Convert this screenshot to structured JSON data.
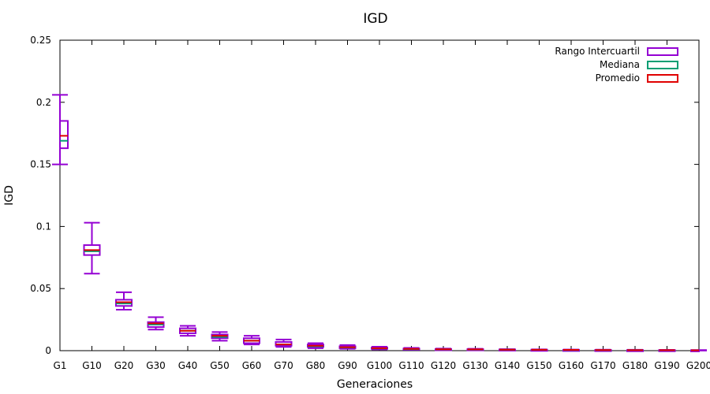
{
  "chart_data": {
    "type": "boxplot",
    "title": "IGD",
    "xlabel": "Generaciones",
    "ylabel": "IGD",
    "ylim": [
      0,
      0.25
    ],
    "yticks": [
      "0",
      "0.05",
      "0.1",
      "0.15",
      "0.2",
      "0.25"
    ],
    "ytick_values": [
      0,
      0.05,
      0.1,
      0.15,
      0.2,
      0.25
    ],
    "categories": [
      "G1",
      "G10",
      "G20",
      "G30",
      "G40",
      "G50",
      "G60",
      "G70",
      "G80",
      "G90",
      "G100",
      "G110",
      "G120",
      "G130",
      "G140",
      "G150",
      "G160",
      "G170",
      "G180",
      "G190",
      "G200"
    ],
    "whisker_low": [
      0.15,
      0.062,
      0.033,
      0.017,
      0.012,
      0.008,
      0.005,
      0.003,
      0.002,
      0.0015,
      0.001,
      0.0008,
      0.0006,
      0.0005,
      0.0004,
      0.0003,
      0.0003,
      0.0002,
      0.0002,
      0.0002,
      0.0001
    ],
    "q1": [
      0.163,
      0.077,
      0.036,
      0.019,
      0.014,
      0.01,
      0.006,
      0.004,
      0.003,
      0.002,
      0.0015,
      0.001,
      0.0008,
      0.0007,
      0.0006,
      0.0005,
      0.0004,
      0.0003,
      0.0003,
      0.0002,
      0.0002
    ],
    "median": [
      0.169,
      0.08,
      0.038,
      0.021,
      0.016,
      0.011,
      0.008,
      0.005,
      0.0035,
      0.0025,
      0.0018,
      0.0012,
      0.001,
      0.0009,
      0.0007,
      0.0006,
      0.0005,
      0.0004,
      0.0004,
      0.0003,
      0.0003
    ],
    "mean": [
      0.173,
      0.081,
      0.039,
      0.022,
      0.016,
      0.012,
      0.008,
      0.005,
      0.004,
      0.0028,
      0.002,
      0.0014,
      0.0011,
      0.001,
      0.0008,
      0.0007,
      0.0006,
      0.0005,
      0.0004,
      0.0004,
      0.0003
    ],
    "q3": [
      0.185,
      0.085,
      0.041,
      0.023,
      0.018,
      0.013,
      0.01,
      0.007,
      0.005,
      0.0035,
      0.0025,
      0.0017,
      0.0013,
      0.0012,
      0.001,
      0.0008,
      0.0007,
      0.0006,
      0.0005,
      0.0005,
      0.0004
    ],
    "whisker_high": [
      0.206,
      0.103,
      0.047,
      0.027,
      0.02,
      0.015,
      0.012,
      0.009,
      0.006,
      0.0045,
      0.0032,
      0.0022,
      0.0017,
      0.0015,
      0.0012,
      0.001,
      0.0009,
      0.0008,
      0.0007,
      0.0006,
      0.0005
    ],
    "legend": {
      "position": "top-right",
      "entries": [
        {
          "label": "Rango Intercuartil",
          "color": "#9400d3"
        },
        {
          "label": "Mediana",
          "color": "#009e73"
        },
        {
          "label": "Promedio",
          "color": "#e00000"
        }
      ]
    },
    "grid": false
  }
}
